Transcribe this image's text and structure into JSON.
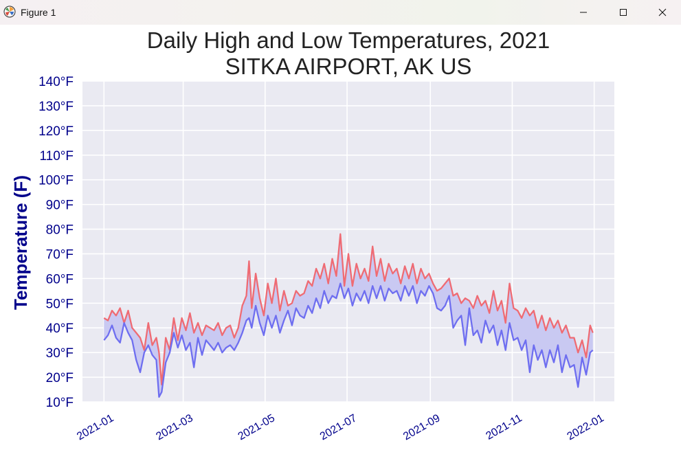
{
  "window": {
    "title": "Figure 1",
    "icons": {
      "app": "matplotlib-logo-icon",
      "minimize": "minimize-icon",
      "maximize": "maximize-icon",
      "close": "close-icon"
    }
  },
  "colors": {
    "plot_background": "#eaeaf2",
    "grid": "#ffffff",
    "high_line": "#ef6b73",
    "low_line": "#6e6ef0",
    "fill": "#c9c9f2",
    "tick_label": "#00008b",
    "ylabel": "#00008b",
    "title": "#222222"
  },
  "chart_data": {
    "type": "line",
    "title": "Daily High and Low Temperatures, 2021",
    "subtitle": "SITKA AIRPORT, AK US",
    "ylabel": "Temperature (F)",
    "xlabel": "",
    "ylim": [
      10,
      140
    ],
    "xlim": [
      "2020-12-16",
      "2022-01-16"
    ],
    "y_ticks": [
      10,
      20,
      30,
      40,
      50,
      60,
      70,
      80,
      90,
      100,
      110,
      120,
      130,
      140
    ],
    "y_tick_labels": [
      "10°F",
      "20°F",
      "30°F",
      "40°F",
      "50°F",
      "60°F",
      "70°F",
      "80°F",
      "90°F",
      "100°F",
      "110°F",
      "120°F",
      "130°F",
      "140°F"
    ],
    "x_ticks": [
      "2021-01-01",
      "2021-03-01",
      "2021-05-01",
      "2021-07-01",
      "2021-09-01",
      "2021-11-01",
      "2022-01-01"
    ],
    "x_tick_labels": [
      "2021-01",
      "2021-03",
      "2021-05",
      "2021-07",
      "2021-09",
      "2021-11",
      "2022-01"
    ],
    "grid": true,
    "fill_between_series": true,
    "x": [
      "2021-01-01",
      "2021-01-04",
      "2021-01-07",
      "2021-01-10",
      "2021-01-13",
      "2021-01-16",
      "2021-01-19",
      "2021-01-22",
      "2021-01-25",
      "2021-01-28",
      "2021-01-31",
      "2021-02-03",
      "2021-02-06",
      "2021-02-09",
      "2021-02-11",
      "2021-02-13",
      "2021-02-16",
      "2021-02-19",
      "2021-02-22",
      "2021-02-25",
      "2021-02-28",
      "2021-03-03",
      "2021-03-06",
      "2021-03-09",
      "2021-03-12",
      "2021-03-15",
      "2021-03-18",
      "2021-03-21",
      "2021-03-24",
      "2021-03-27",
      "2021-03-30",
      "2021-04-02",
      "2021-04-05",
      "2021-04-08",
      "2021-04-11",
      "2021-04-14",
      "2021-04-17",
      "2021-04-19",
      "2021-04-21",
      "2021-04-24",
      "2021-04-27",
      "2021-04-30",
      "2021-05-03",
      "2021-05-06",
      "2021-05-09",
      "2021-05-12",
      "2021-05-15",
      "2021-05-18",
      "2021-05-21",
      "2021-05-24",
      "2021-05-27",
      "2021-05-30",
      "2021-06-02",
      "2021-06-05",
      "2021-06-08",
      "2021-06-11",
      "2021-06-14",
      "2021-06-17",
      "2021-06-20",
      "2021-06-23",
      "2021-06-26",
      "2021-06-29",
      "2021-07-02",
      "2021-07-05",
      "2021-07-08",
      "2021-07-11",
      "2021-07-14",
      "2021-07-17",
      "2021-07-20",
      "2021-07-23",
      "2021-07-26",
      "2021-07-29",
      "2021-08-01",
      "2021-08-04",
      "2021-08-07",
      "2021-08-10",
      "2021-08-13",
      "2021-08-16",
      "2021-08-19",
      "2021-08-22",
      "2021-08-25",
      "2021-08-28",
      "2021-08-31",
      "2021-09-03",
      "2021-09-06",
      "2021-09-09",
      "2021-09-12",
      "2021-09-15",
      "2021-09-18",
      "2021-09-21",
      "2021-09-24",
      "2021-09-27",
      "2021-09-30",
      "2021-10-03",
      "2021-10-06",
      "2021-10-09",
      "2021-10-12",
      "2021-10-15",
      "2021-10-18",
      "2021-10-21",
      "2021-10-24",
      "2021-10-27",
      "2021-10-30",
      "2021-11-02",
      "2021-11-05",
      "2021-11-08",
      "2021-11-11",
      "2021-11-14",
      "2021-11-17",
      "2021-11-20",
      "2021-11-23",
      "2021-11-26",
      "2021-11-29",
      "2021-12-02",
      "2021-12-05",
      "2021-12-08",
      "2021-12-11",
      "2021-12-14",
      "2021-12-17",
      "2021-12-20",
      "2021-12-23",
      "2021-12-26",
      "2021-12-29",
      "2021-12-31"
    ],
    "series": [
      {
        "name": "",
        "values": [
          44,
          43,
          47,
          45,
          48,
          42,
          47,
          40,
          38,
          36,
          31,
          42,
          33,
          36,
          30,
          17,
          36,
          31,
          44,
          35,
          44,
          39,
          46,
          38,
          42,
          37,
          41,
          40,
          39,
          42,
          37,
          40,
          41,
          36,
          40,
          49,
          53,
          67,
          48,
          62,
          52,
          45,
          58,
          50,
          60,
          47,
          55,
          49,
          50,
          55,
          53,
          54,
          59,
          57,
          64,
          60,
          66,
          58,
          68,
          61,
          78,
          57,
          70,
          57,
          66,
          60,
          64,
          59,
          73,
          61,
          68,
          59,
          66,
          62,
          64,
          58,
          65,
          60,
          66,
          58,
          64,
          60,
          62,
          58,
          55,
          56,
          58,
          60,
          53,
          54,
          50,
          52,
          51,
          48,
          53,
          49,
          51,
          46,
          55,
          47,
          51,
          42,
          58,
          48,
          47,
          44,
          48,
          45,
          47,
          40,
          45,
          39,
          44,
          40,
          43,
          38,
          41,
          36,
          36,
          30,
          35,
          28,
          41,
          38
        ]
      },
      {
        "name": "",
        "values": [
          35,
          37,
          41,
          36,
          34,
          42,
          38,
          35,
          27,
          22,
          30,
          33,
          29,
          27,
          12,
          14,
          26,
          30,
          38,
          32,
          37,
          31,
          34,
          24,
          36,
          29,
          35,
          33,
          31,
          34,
          30,
          32,
          33,
          31,
          34,
          38,
          43,
          44,
          40,
          49,
          42,
          37,
          45,
          40,
          45,
          38,
          43,
          47,
          41,
          48,
          45,
          44,
          49,
          46,
          52,
          48,
          55,
          50,
          53,
          52,
          58,
          52,
          56,
          49,
          54,
          51,
          55,
          50,
          57,
          52,
          57,
          51,
          56,
          54,
          55,
          51,
          57,
          53,
          57,
          50,
          55,
          53,
          57,
          54,
          48,
          47,
          49,
          53,
          40,
          43,
          45,
          33,
          48,
          37,
          39,
          34,
          43,
          38,
          41,
          33,
          39,
          31,
          42,
          35,
          36,
          31,
          35,
          22,
          33,
          27,
          31,
          24,
          31,
          26,
          33,
          22,
          29,
          24,
          25,
          16,
          28,
          21,
          30,
          31
        ]
      }
    ]
  }
}
